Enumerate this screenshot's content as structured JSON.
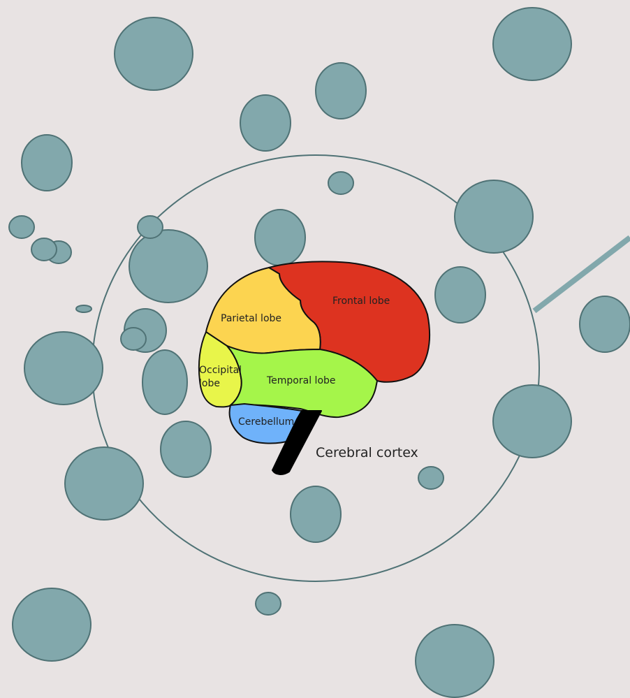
{
  "labels": {
    "frontal": "Frontal lobe",
    "parietal": "Parietal lobe",
    "occipital": [
      "Occipital",
      "lobe"
    ],
    "temporal": "Temporal lobe",
    "cerebellum": "Cerebellum",
    "cortex": "Cerebral cortex"
  }
}
